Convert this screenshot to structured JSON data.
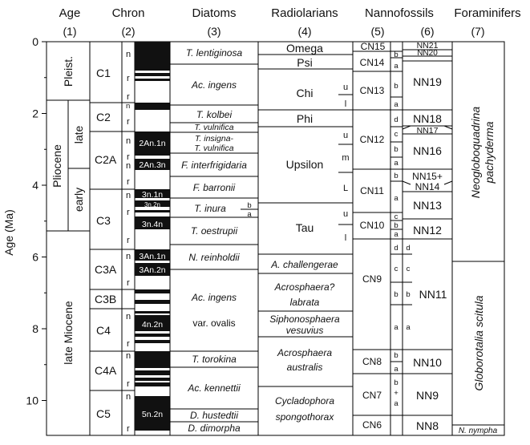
{
  "axis": {
    "label": "Age (Ma)",
    "ticks": [
      "0",
      "2",
      "4",
      "6",
      "8",
      "10"
    ]
  },
  "columns": [
    {
      "title": "Age",
      "num": "(1)"
    },
    {
      "title": "Chron",
      "num": "(2)"
    },
    {
      "title": "Diatoms",
      "num": "(3)"
    },
    {
      "title": "Radiolarians",
      "num": "(4)"
    },
    {
      "title": "Nannofossils",
      "num": "(5)"
    },
    {
      "title": "",
      "num": "(6)"
    },
    {
      "title": "Foraminifers",
      "num": "(7)"
    }
  ],
  "age": {
    "pleist": "Pleist.",
    "pliocene": "Pliocene",
    "late": "late",
    "early": "early",
    "late_miocene": "late Miocene"
  },
  "chrons": [
    "C1",
    "C2",
    "C2A",
    "C3",
    "C3A",
    "C3B",
    "C4",
    "C4A",
    "C5"
  ],
  "polarity": {
    "n": "n",
    "r": "r"
  },
  "mag_labels": [
    "2An.1n",
    "2An.3n",
    "3n.1n",
    "3n.2n",
    "3n.4n",
    "3An.1n",
    "3An.2n",
    "4n.2n",
    "5n.2n"
  ],
  "diatoms": [
    "T. lentiginosa",
    "Ac. ingens",
    "T. kolbei",
    "T. vulnifica",
    "T. insigna-",
    "T. vulnifica",
    "F. interfrigidaria",
    "F. barronii",
    "T. inura",
    "T. oestrupii",
    "N. reinholdii",
    "Ac. ingens",
    "var. ovalis",
    "T. torokina",
    "Ac. kennettii",
    "D. hustedtii",
    "D. dimorpha"
  ],
  "diatom_sub": [
    "b",
    "a"
  ],
  "radiolarians": [
    "Omega",
    "Psi",
    "Chi",
    "Phi",
    "Upsilon",
    "Tau",
    "A. challengerae",
    "Acrosphaera?",
    "labrata",
    "Siphonosphaera",
    "vesuvius",
    "Acrosphaera",
    "australis",
    "Cycladophora",
    "spongothorax"
  ],
  "rad_sub": [
    "u",
    "l",
    "u",
    "m",
    "L",
    "u",
    "l"
  ],
  "nanno5": [
    "CN15",
    "CN14",
    "CN13",
    "CN12",
    "CN11",
    "CN10",
    "CN9",
    "CN8",
    "CN7",
    "CN6"
  ],
  "nanno5_sub": [
    "b",
    "a",
    "b",
    "a",
    "d",
    "c",
    "b",
    "a",
    "b",
    "a",
    "c",
    "b",
    "a",
    "d",
    "c",
    "b",
    "a",
    "b",
    "a",
    "b",
    "+",
    "a"
  ],
  "nanno6": [
    "NN21",
    "NN20",
    "NN19",
    "NN18",
    "NN17",
    "NN16",
    "NN15+",
    "NN14",
    "NN13",
    "NN12",
    "NN11",
    "NN10",
    "NN9",
    "NN8"
  ],
  "nanno6_sub": [
    "d",
    "c",
    "b",
    "a"
  ],
  "forams": [
    "Neogloboquadrina",
    "pachyderma",
    "Globorotalia scitula",
    "N. nympha"
  ]
}
